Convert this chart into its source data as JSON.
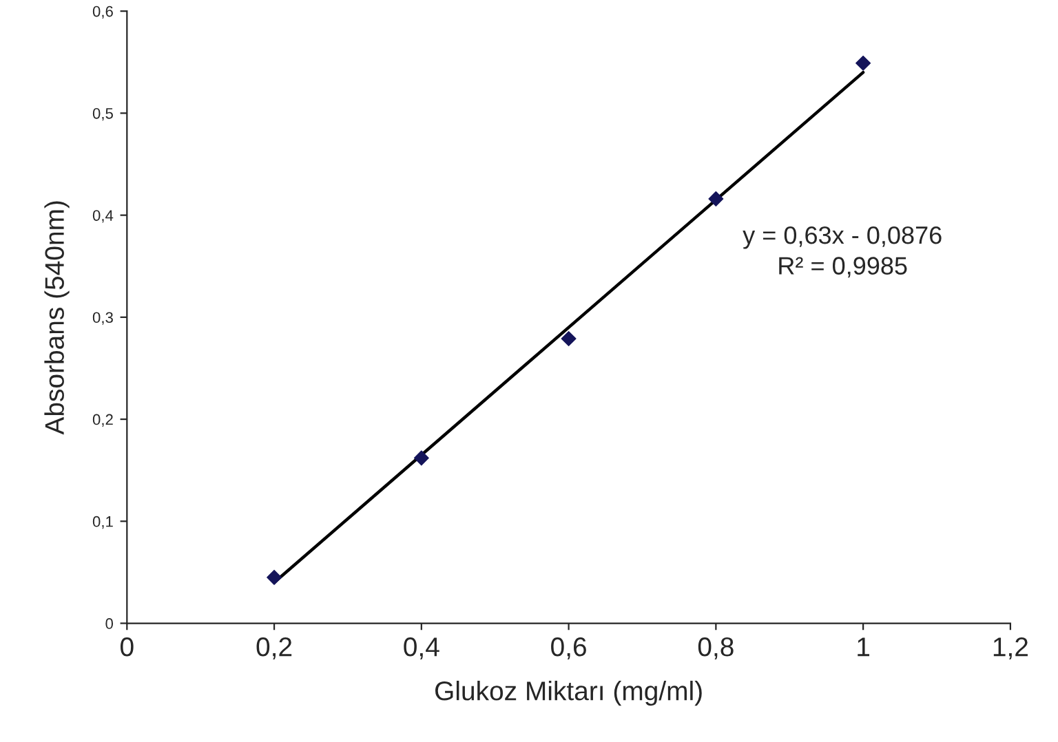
{
  "chart_data": {
    "type": "scatter",
    "xlabel": "Glukoz Miktarı (mg/ml)",
    "ylabel": "Absorbans (540nm)",
    "series": [
      {
        "color": "#14145a",
        "marker": "diamond",
        "x": [
          0.2,
          0.4,
          0.6,
          0.8,
          1.0
        ],
        "values": [
          0.045,
          0.162,
          0.279,
          0.416,
          0.549
        ]
      },
      {
        "type": "line",
        "color": "#000000",
        "marker": "none",
        "line_style": "solid",
        "x": [
          0.2,
          1.0
        ],
        "values": [
          0.04,
          0.54
        ]
      }
    ],
    "annotations": [
      "y = 0,63x - 0,0876",
      "R² = 0,9985"
    ],
    "xlim": [
      0,
      1.2
    ],
    "ylim": [
      0,
      0.6
    ],
    "xticks": [
      0,
      {
        "value": 0.2,
        "label": "0,2"
      },
      {
        "value": 0.4,
        "label": "0,4"
      },
      {
        "value": 0.6,
        "label": "0,6"
      },
      {
        "value": 0.8,
        "label": "0,8"
      },
      1,
      {
        "value": 1.2,
        "label": "1,2"
      }
    ],
    "yticks": [
      0,
      {
        "value": 0.1,
        "label": "0,1"
      },
      {
        "value": 0.2,
        "label": "0,2"
      },
      {
        "value": 0.3,
        "label": "0,3"
      },
      {
        "value": 0.4,
        "label": "0,4"
      },
      {
        "value": 0.5,
        "label": "0,5"
      },
      {
        "value": 0.6,
        "label": "0,6"
      }
    ],
    "grid": false,
    "legend": false
  }
}
